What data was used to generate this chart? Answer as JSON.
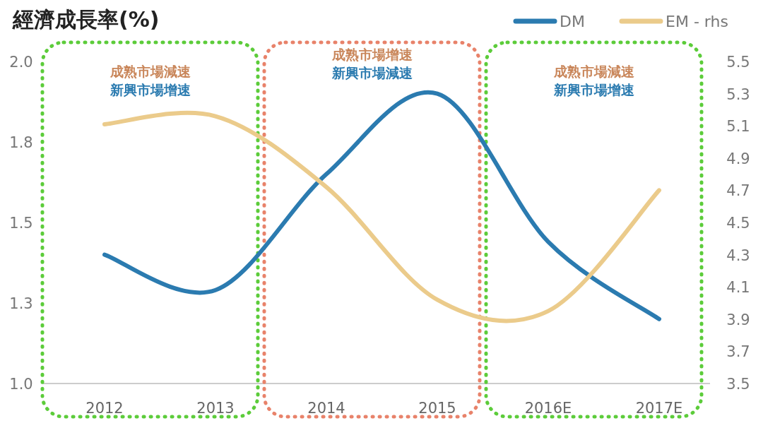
{
  "chart_data": {
    "type": "line",
    "title": "經濟成長率(%)",
    "categories": [
      "2012",
      "2013",
      "2014",
      "2015",
      "2016E",
      "2017E"
    ],
    "series": [
      {
        "name": "DM",
        "color": "#2b7bb0",
        "values": [
          1.4,
          1.29,
          1.65,
          1.9,
          1.44,
          1.2
        ]
      },
      {
        "name": "EM - rhs",
        "color": "#ebcb8b",
        "axis": "y2",
        "values": [
          5.11,
          5.16,
          4.72,
          4.02,
          3.95,
          4.7
        ]
      }
    ],
    "ylim": [
      1,
      2
    ],
    "yticks": [
      {
        "value": 1,
        "label": "1.0"
      },
      {
        "value": 1.25,
        "label": "1.3"
      },
      1.5,
      {
        "value": 1.75,
        "label": "1.8"
      },
      {
        "value": 2,
        "label": "2.0"
      }
    ],
    "y2lim": [
      3.5,
      5.5
    ],
    "y2ticks": [
      3.5,
      3.7,
      3.9,
      4.1,
      4.3,
      4.5,
      4.7,
      4.9,
      5.1,
      5.3,
      5.5
    ],
    "annotations": [
      "成熟市場減速",
      "新興市場增速",
      "成熟市場增速",
      "新興市場減速",
      "成熟市場減速",
      "新興市場增速"
    ],
    "legend": "top right",
    "grid": false,
    "marker": "none",
    "line_style": "solid"
  }
}
